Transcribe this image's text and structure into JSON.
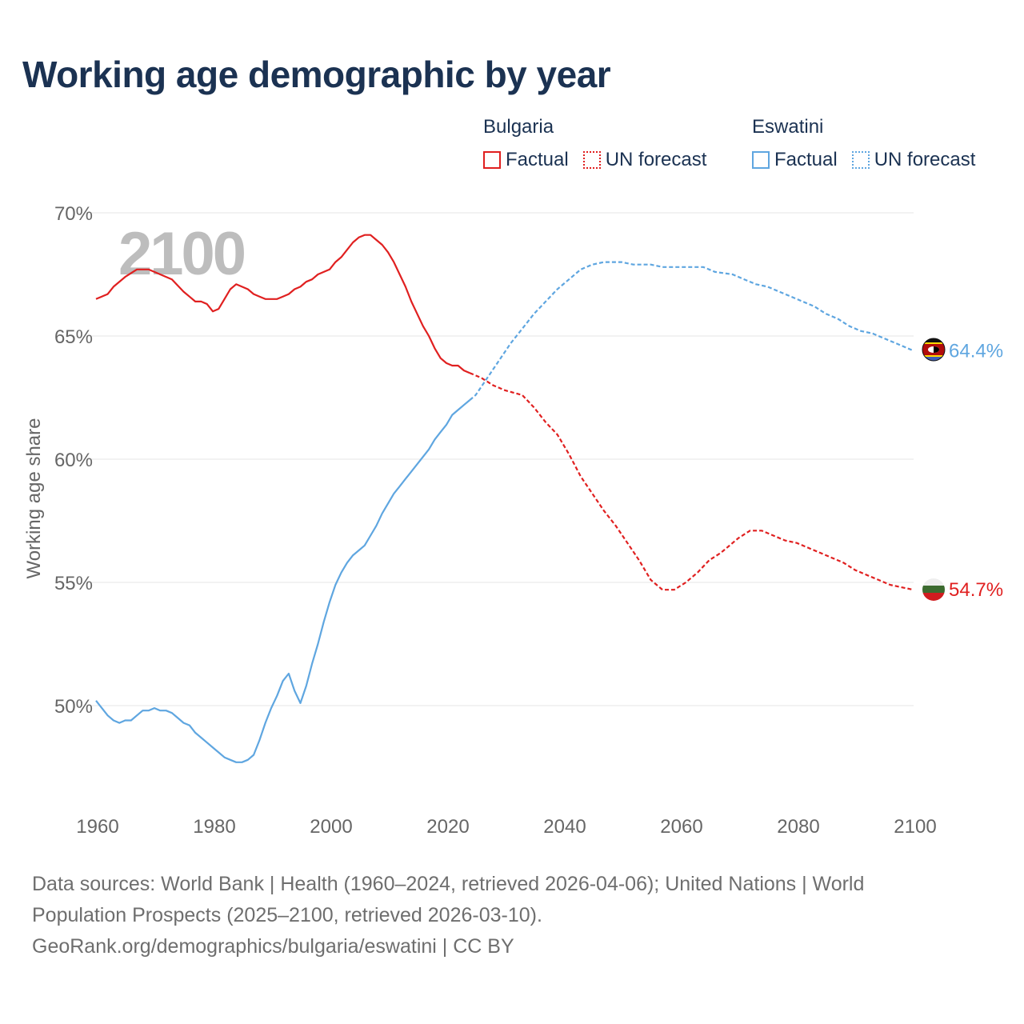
{
  "title": "Working age demographic by year",
  "legend": {
    "groups": [
      {
        "country": "Bulgaria",
        "factual_label": "Factual",
        "forecast_label": "UN forecast",
        "color": "#e02020"
      },
      {
        "country": "Eswatini",
        "factual_label": "Factual",
        "forecast_label": "UN forecast",
        "color": "#5fa6e0"
      }
    ]
  },
  "year_watermark": "2100",
  "footer": {
    "line1": "Data sources: World Bank | Health (1960–2024, retrieved 2026-04-06); United Nations | World",
    "line2": "Population Prospects (2025–2100, retrieved 2026-03-10).",
    "line3": "GeoRank.org/demographics/bulgaria/eswatini | CC BY"
  },
  "chart_data": {
    "type": "line",
    "ylabel": "Working age share",
    "xlabel": "",
    "xlim": [
      1960,
      2100
    ],
    "ylim": [
      47,
      70
    ],
    "x_ticks": [
      1960,
      1980,
      2000,
      2020,
      2040,
      2060,
      2080,
      2100
    ],
    "x_tick_labels": [
      "1960",
      "1980",
      "2000",
      "2020",
      "2040",
      "2060",
      "2080",
      "2100"
    ],
    "y_ticks": [
      50,
      55,
      60,
      65,
      70
    ],
    "y_tick_labels": [
      "50%",
      "55%",
      "60%",
      "65%",
      "70%"
    ],
    "grid": true,
    "series": [
      {
        "name": "Bulgaria",
        "color": "#e02020",
        "end_label": "54.7%",
        "factual": {
          "x": [
            1960,
            1962,
            1963,
            1965,
            1967,
            1969,
            1971,
            1973,
            1975,
            1976,
            1977,
            1978,
            1979,
            1980,
            1981,
            1982,
            1983,
            1984,
            1985,
            1986,
            1987,
            1988,
            1989,
            1990,
            1991,
            1992,
            1993,
            1994,
            1995,
            1996,
            1997,
            1998,
            1999,
            2000,
            2001,
            2002,
            2003,
            2004,
            2005,
            2006,
            2007,
            2008,
            2009,
            2010,
            2011,
            2012,
            2013,
            2014,
            2015,
            2016,
            2017,
            2018,
            2019,
            2020,
            2021,
            2022,
            2023,
            2024
          ],
          "y": [
            66.5,
            66.7,
            67.0,
            67.4,
            67.7,
            67.7,
            67.5,
            67.3,
            66.8,
            66.6,
            66.4,
            66.4,
            66.3,
            66.0,
            66.1,
            66.5,
            66.9,
            67.1,
            67.0,
            66.9,
            66.7,
            66.6,
            66.5,
            66.5,
            66.5,
            66.6,
            66.7,
            66.9,
            67.0,
            67.2,
            67.3,
            67.5,
            67.6,
            67.7,
            68.0,
            68.2,
            68.5,
            68.8,
            69.0,
            69.1,
            69.1,
            68.9,
            68.7,
            68.4,
            68.0,
            67.5,
            67.0,
            66.4,
            65.9,
            65.4,
            65.0,
            64.5,
            64.1,
            63.9,
            63.8,
            63.8,
            63.6,
            63.5
          ]
        },
        "forecast": {
          "x": [
            2024,
            2026,
            2028,
            2030,
            2033,
            2035,
            2037,
            2039,
            2041,
            2043,
            2045,
            2047,
            2049,
            2051,
            2053,
            2055,
            2057,
            2059,
            2061,
            2063,
            2065,
            2067,
            2070,
            2072,
            2074,
            2076,
            2078,
            2080,
            2082,
            2084,
            2086,
            2088,
            2090,
            2092,
            2094,
            2096,
            2098,
            2100
          ],
          "y": [
            63.5,
            63.3,
            63.0,
            62.8,
            62.6,
            62.1,
            61.5,
            61.0,
            60.2,
            59.3,
            58.6,
            57.9,
            57.3,
            56.6,
            55.9,
            55.1,
            54.7,
            54.7,
            55.0,
            55.4,
            55.9,
            56.2,
            56.8,
            57.1,
            57.1,
            56.9,
            56.7,
            56.6,
            56.4,
            56.2,
            56.0,
            55.8,
            55.5,
            55.3,
            55.1,
            54.9,
            54.8,
            54.7
          ]
        }
      },
      {
        "name": "Eswatini",
        "color": "#5fa6e0",
        "end_label": "64.4%",
        "factual": {
          "x": [
            1960,
            1961,
            1962,
            1963,
            1964,
            1965,
            1966,
            1967,
            1968,
            1969,
            1970,
            1971,
            1972,
            1973,
            1974,
            1975,
            1976,
            1977,
            1978,
            1979,
            1980,
            1981,
            1982,
            1983,
            1984,
            1985,
            1986,
            1987,
            1988,
            1989,
            1990,
            1991,
            1992,
            1993,
            1994,
            1995,
            1996,
            1997,
            1998,
            1999,
            2000,
            2001,
            2002,
            2003,
            2004,
            2005,
            2006,
            2007,
            2008,
            2009,
            2010,
            2011,
            2012,
            2013,
            2014,
            2015,
            2016,
            2017,
            2018,
            2019,
            2020,
            2021,
            2022,
            2023,
            2024
          ],
          "y": [
            50.2,
            49.9,
            49.6,
            49.4,
            49.3,
            49.4,
            49.4,
            49.6,
            49.8,
            49.8,
            49.9,
            49.8,
            49.8,
            49.7,
            49.5,
            49.3,
            49.2,
            48.9,
            48.7,
            48.5,
            48.3,
            48.1,
            47.9,
            47.8,
            47.7,
            47.7,
            47.8,
            48.0,
            48.6,
            49.3,
            49.9,
            50.4,
            51.0,
            51.3,
            50.6,
            50.1,
            50.8,
            51.7,
            52.5,
            53.4,
            54.2,
            54.9,
            55.4,
            55.8,
            56.1,
            56.3,
            56.5,
            56.9,
            57.3,
            57.8,
            58.2,
            58.6,
            58.9,
            59.2,
            59.5,
            59.8,
            60.1,
            60.4,
            60.8,
            61.1,
            61.4,
            61.8,
            62.0,
            62.2,
            62.4
          ]
        },
        "forecast": {
          "x": [
            2024,
            2025,
            2027,
            2029,
            2031,
            2033,
            2035,
            2037,
            2039,
            2041,
            2043,
            2045,
            2047,
            2050,
            2052,
            2055,
            2057,
            2060,
            2064,
            2066,
            2069,
            2071,
            2073,
            2075,
            2077,
            2079,
            2081,
            2083,
            2085,
            2087,
            2089,
            2091,
            2093,
            2095,
            2097,
            2099,
            2100
          ],
          "y": [
            62.4,
            62.6,
            63.3,
            64.0,
            64.7,
            65.3,
            65.9,
            66.4,
            66.9,
            67.3,
            67.7,
            67.9,
            68.0,
            68.0,
            67.9,
            67.9,
            67.8,
            67.8,
            67.8,
            67.6,
            67.5,
            67.3,
            67.1,
            67.0,
            66.8,
            66.6,
            66.4,
            66.2,
            65.9,
            65.7,
            65.4,
            65.2,
            65.1,
            64.9,
            64.7,
            64.5,
            64.4
          ]
        }
      }
    ]
  }
}
